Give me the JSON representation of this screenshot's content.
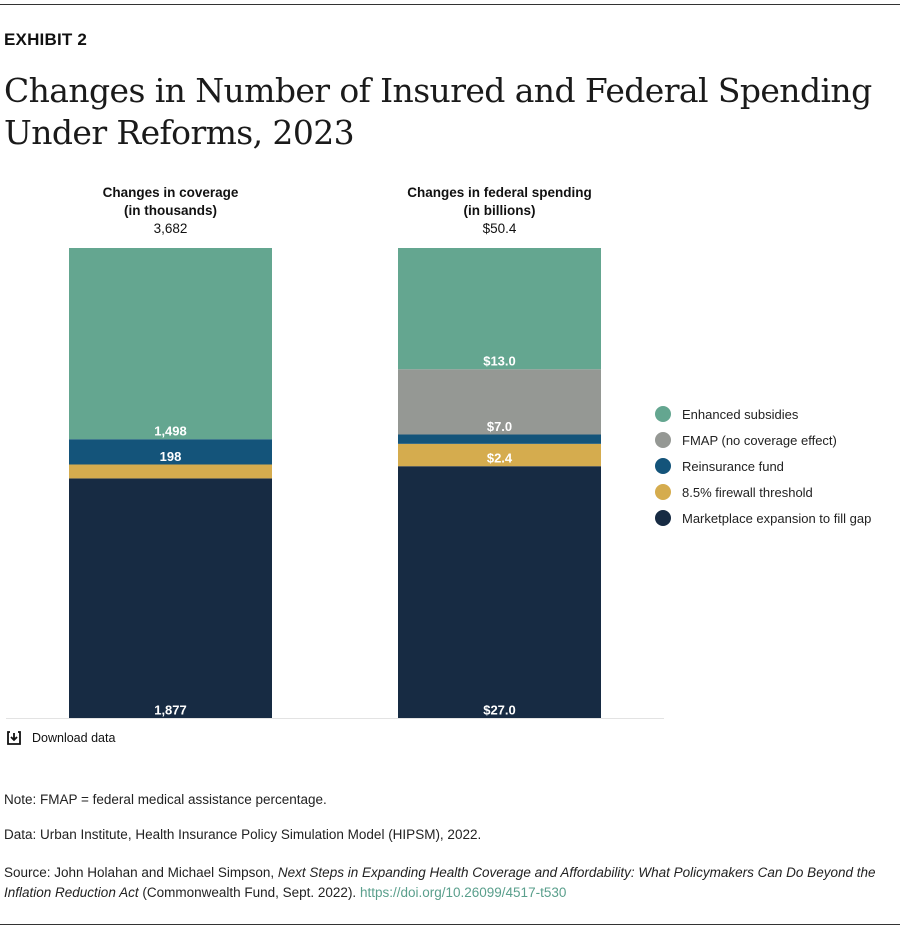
{
  "header": {
    "exhibit": "EXHIBIT 2",
    "title": "Changes in Number of Insured and Federal Spending Under Reforms, 2023"
  },
  "chart_data": {
    "type": "stacked-bar",
    "legend_position": "right",
    "grid": false,
    "series": [
      {
        "name": "Marketplace expansion to fill gap",
        "color": "#172b43"
      },
      {
        "name": "8.5% firewall threshold",
        "color": "#d5ac4e"
      },
      {
        "name": "Reinsurance fund",
        "color": "#14547a"
      },
      {
        "name": "FMAP (no coverage effect)",
        "color": "#959894"
      },
      {
        "name": "Enhanced subsidies",
        "color": "#64a690"
      }
    ],
    "bars": [
      {
        "title": "Changes in coverage",
        "subtitle": "(in thousands)",
        "total_label": "3,682",
        "total": 3682,
        "values": [
          1877,
          109,
          198,
          0,
          1498
        ],
        "labels": [
          "1,877",
          "",
          "198",
          "",
          "1,498"
        ]
      },
      {
        "title": "Changes in federal spending",
        "subtitle": "(in billions)",
        "total_label": "$50.4",
        "total": 50.4,
        "values": [
          27.0,
          2.4,
          1.0,
          7.0,
          13.0
        ],
        "labels": [
          "$27.0",
          "$2.4",
          "",
          "$7.0",
          "$13.0"
        ]
      }
    ]
  },
  "download_label": "Download data",
  "notes": {
    "note": "Note: FMAP = federal medical assistance percentage.",
    "data": "Data: Urban Institute, Health Insurance Policy Simulation Model (HIPSM), 2022.",
    "source_prefix": "Source: John Holahan and Michael Simpson, ",
    "source_title": "Next Steps in Expanding Health Coverage and Affordability: What Policymakers Can Do Beyond the Inflation Reduction Act",
    "source_suffix": " (Commonwealth Fund, Sept. 2022). ",
    "source_link": "https://doi.org/10.26099/4517-t530"
  }
}
